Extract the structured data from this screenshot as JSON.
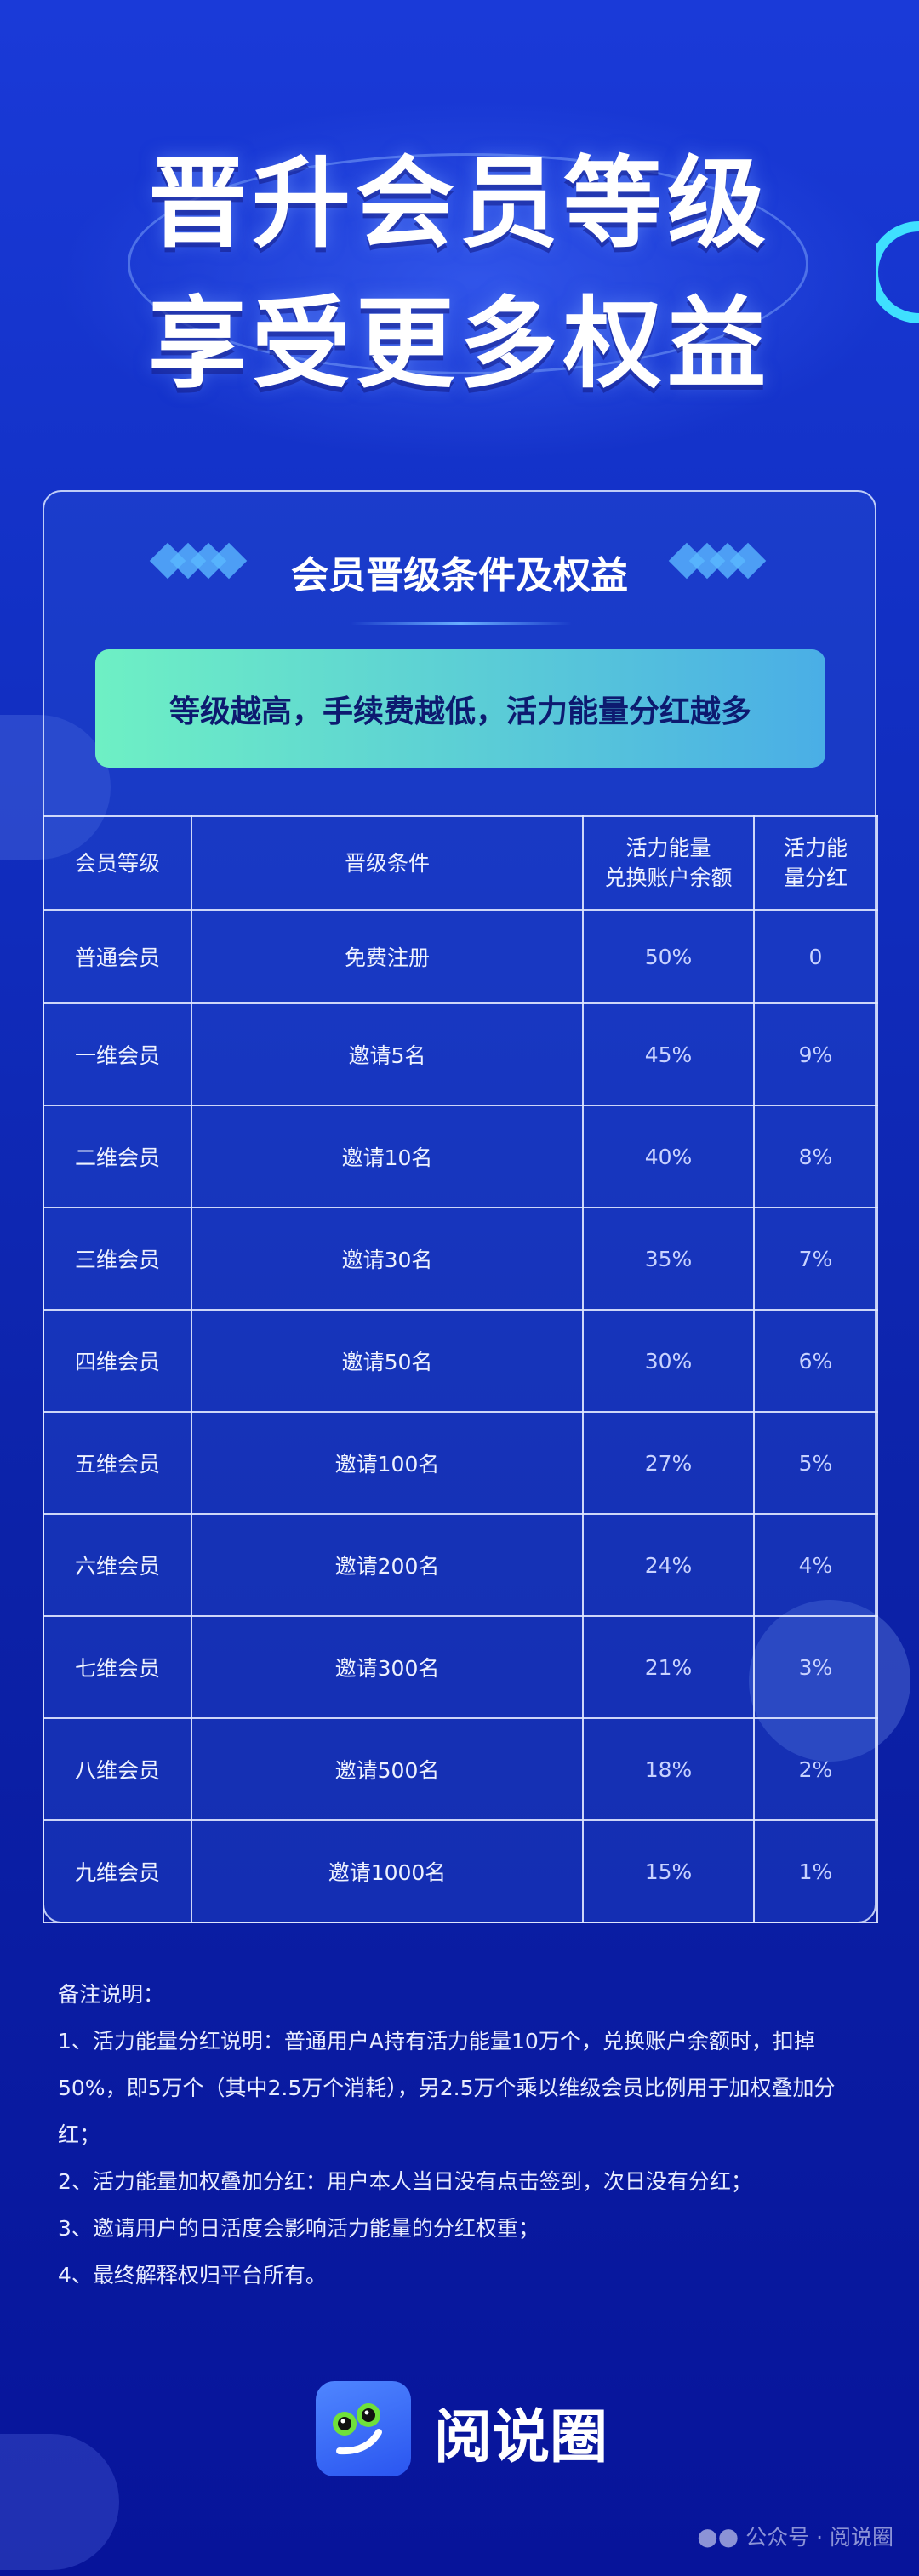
{
  "hero": {
    "line1": "晋升会员等级",
    "line2": "享受更多权益"
  },
  "card": {
    "section_title": "会员晋级条件及权益",
    "banner": "等级越高，手续费越低，活力能量分红越多"
  },
  "table": {
    "headers": [
      "会员等级",
      "晋级条件",
      "活力能量\n兑换账户余额",
      "活力能\n量分红"
    ],
    "rows": [
      [
        "普通会员",
        "免费注册",
        "50%",
        "0"
      ],
      [
        "一维会员",
        "邀请5名",
        "45%",
        "9%"
      ],
      [
        "二维会员",
        "邀请10名",
        "40%",
        "8%"
      ],
      [
        "三维会员",
        "邀请30名",
        "35%",
        "7%"
      ],
      [
        "四维会员",
        "邀请50名",
        "30%",
        "6%"
      ],
      [
        "五维会员",
        "邀请100名",
        "27%",
        "5%"
      ],
      [
        "六维会员",
        "邀请200名",
        "24%",
        "4%"
      ],
      [
        "七维会员",
        "邀请300名",
        "21%",
        "3%"
      ],
      [
        "八维会员",
        "邀请500名",
        "18%",
        "2%"
      ],
      [
        "九维会员",
        "邀请1000名",
        "15%",
        "1%"
      ]
    ]
  },
  "notes": {
    "title": "备注说明：",
    "items": [
      "1、活力能量分红说明：普通用户A持有活力能量10万个，兑换账户余额时，扣掉50%，即5万个（其中2.5万个消耗），另2.5万个乘以维级会员比例用于加权叠加分红；",
      "2、活力能量加权叠加分红：用户本人当日没有点击签到，次日没有分红；",
      "3、邀请用户的日活度会影响活力能量的分红权重；",
      "4、最终解释权归平台所有。"
    ]
  },
  "brand": {
    "name": "阅说圈",
    "icon": "frog-face-app-icon"
  },
  "watermark": {
    "text": "公众号 · 阅说圈",
    "icon": "wechat-icon"
  },
  "colors": {
    "background": "#1230c4",
    "banner_start": "#6ef0c4",
    "banner_end": "#4aaee6",
    "banner_text": "#0d1a70"
  }
}
